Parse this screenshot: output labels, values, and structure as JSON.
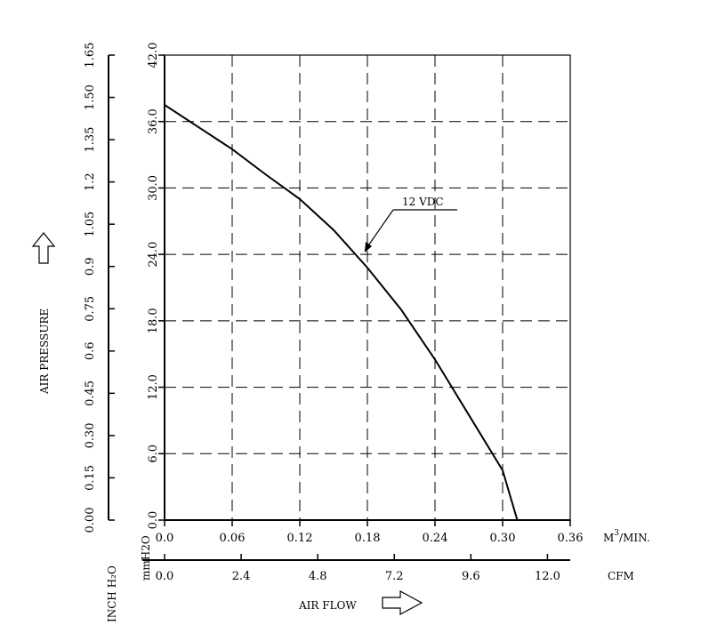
{
  "chart_data": {
    "type": "line",
    "x_m3min": [
      0.0,
      0.03,
      0.06,
      0.09,
      0.12,
      0.15,
      0.18,
      0.21,
      0.24,
      0.27,
      0.3,
      0.313
    ],
    "y_mmH2O": [
      37.5,
      35.5,
      33.5,
      31.2,
      29.0,
      26.2,
      22.8,
      19.0,
      14.5,
      9.5,
      4.5,
      0.0
    ],
    "series": [
      {
        "name": "12 VDC"
      }
    ],
    "annotation": "12 VDC",
    "ylabel": "AIR PRESSURE",
    "xlabel": "AIR FLOW",
    "y_mmH2O_axis": {
      "title": "mmH2O",
      "ticks": [
        "0.0",
        "6.0",
        "12.0",
        "18.0",
        "24.0",
        "30.0",
        "36.0",
        "42.0"
      ],
      "range": [
        0,
        42
      ]
    },
    "y_inch_axis": {
      "title": "INCH H₂O",
      "ticks": [
        "0.00",
        "0.15",
        "0.30",
        "0.45",
        "0.6",
        "0.75",
        "0.9",
        "1.05",
        "1.2",
        "1.35",
        "1.50",
        "1.65"
      ],
      "range": [
        0,
        1.65
      ]
    },
    "x_m3min_axis": {
      "title": "M³/MIN.",
      "title_base": "M",
      "title_sup": "3",
      "title_rest": "/MIN.",
      "ticks": [
        "0.0",
        "0.06",
        "0.12",
        "0.18",
        "0.24",
        "0.30",
        "0.36"
      ],
      "range": [
        0,
        0.36
      ]
    },
    "x_cfm_axis": {
      "title": "CFM",
      "ticks": [
        "0.0",
        "2.4",
        "4.8",
        "7.2",
        "9.6",
        "12.0"
      ],
      "range": [
        0,
        12.713
      ]
    },
    "grid": true,
    "grid_style": "dashed"
  }
}
